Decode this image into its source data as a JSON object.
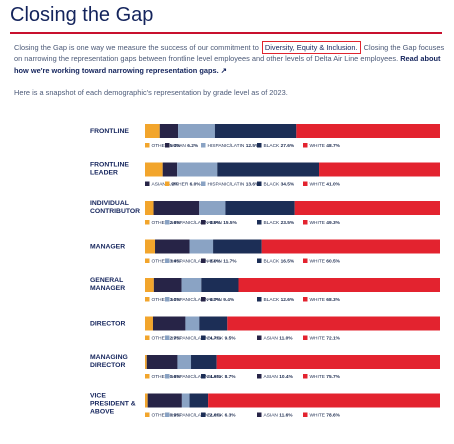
{
  "page": {
    "title": "Closing the Gap",
    "intro_before": "Closing the Gap is one way we measure the success of our commitment to",
    "intro_highlight": "Diversity, Equity & Inclusion.",
    "intro_after": " Closing the Gap focuses on narrowing the representation gaps between frontline level employees and other levels of Delta Air Line employees.",
    "intro_link": "Read about how we're working toward narrowing representation gaps. ↗",
    "snapshot_text": "Here is a snapshot of each demographic's representation by grade level as of 2023."
  },
  "colors": {
    "OTHER": "#f2a52c",
    "ASIAN": "#272447",
    "HISPANIC/LATIN": "#8aa3c4",
    "BLACK": "#1c2e56",
    "WHITE": "#e3232f"
  },
  "chart_data": {
    "type": "bar",
    "orientation": "horizontal",
    "stacked": true,
    "xlim": [
      0,
      100
    ],
    "series_keys": [
      "OTHER",
      "ASIAN",
      "HISPANIC/LATIN",
      "BLACK",
      "WHITE"
    ],
    "categories": [
      {
        "label": "FRONTLINE",
        "values": {
          "OTHER": 5.0,
          "ASIAN": 6.2,
          "HISPANIC/LATIN": 12.5,
          "BLACK": 27.6,
          "WHITE": 48.7
        },
        "legend_order": [
          "OTHER",
          "ASIAN",
          "HISPANIC/LATIN",
          "BLACK",
          "WHITE"
        ],
        "legend_text": {
          "OTHER": "5.0%",
          "ASIAN": "6.2%",
          "HISPANIC/LATIN": "12.5%",
          "BLACK": "27.6%",
          "WHITE": "48.7%"
        }
      },
      {
        "label": "FRONTLINE LEADER",
        "values": {
          "OTHER": 6.0,
          "ASIAN": 4.9,
          "HISPANIC/LATIN": 13.6,
          "BLACK": 34.5,
          "WHITE": 41.0
        },
        "legend_order": [
          "ASIAN",
          "OTHER",
          "HISPANIC/LATIN",
          "BLACK",
          "WHITE"
        ],
        "legend_text": {
          "OTHER": "6.0%",
          "ASIAN": "4.9%",
          "HISPANIC/LATIN": "13.6%",
          "BLACK": "34.5%",
          "WHITE": "41.0%"
        }
      },
      {
        "label": "INDIVIDUAL CONTRIBUTOR",
        "values": {
          "OTHER": 2.9,
          "ASIAN": 15.5,
          "HISPANIC/LATIN": 8.9,
          "BLACK": 23.5,
          "WHITE": 49.3
        },
        "legend_order": [
          "OTHER",
          "HISPANIC/LATIN",
          "ASIAN",
          "BLACK",
          "WHITE"
        ],
        "legend_text": {
          "OTHER": "2.9%",
          "ASIAN": "15.5%",
          "HISPANIC/LATIN": "8.9%",
          "BLACK": "23.5%",
          "WHITE": "49.3%"
        }
      },
      {
        "label": "MANAGER",
        "values": {
          "OTHER": 3.4,
          "ASIAN": 11.7,
          "HISPANIC/LATIN": 8.0,
          "BLACK": 16.5,
          "WHITE": 60.5
        },
        "legend_order": [
          "OTHER",
          "HISPANIC/LATIN",
          "ASIAN",
          "BLACK",
          "WHITE"
        ],
        "legend_text": {
          "OTHER": "3.4%",
          "ASIAN": "11.7%",
          "HISPANIC/LATIN": "8.0%",
          "BLACK": "16.5%",
          "WHITE": "60.5%"
        }
      },
      {
        "label": "GENERAL MANAGER",
        "values": {
          "OTHER": 3.0,
          "ASIAN": 9.4,
          "HISPANIC/LATIN": 6.7,
          "BLACK": 12.6,
          "WHITE": 68.3
        },
        "legend_order": [
          "OTHER",
          "HISPANIC/LATIN",
          "ASIAN",
          "BLACK",
          "WHITE"
        ],
        "legend_text": {
          "OTHER": "3.0%",
          "ASIAN": "9.4%",
          "HISPANIC/LATIN": "6.7%",
          "BLACK": "12.6%",
          "WHITE": "68.3%"
        }
      },
      {
        "label": "DIRECTOR",
        "values": {
          "OTHER": 2.7,
          "ASIAN": 11.0,
          "HISPANIC/LATIN": 4.7,
          "BLACK": 9.5,
          "WHITE": 72.1
        },
        "legend_order": [
          "OTHER",
          "HISPANIC/LATIN",
          "BLACK",
          "ASIAN",
          "WHITE"
        ],
        "legend_text": {
          "OTHER": "2.7%",
          "ASIAN": "11.0%",
          "HISPANIC/LATIN": "4.7%",
          "BLACK": "9.5%",
          "WHITE": "72.1%"
        }
      },
      {
        "label": "MANAGING DIRECTOR",
        "values": {
          "OTHER": 0.6,
          "ASIAN": 10.4,
          "HISPANIC/LATIN": 4.6,
          "BLACK": 8.7,
          "WHITE": 75.7
        },
        "legend_order": [
          "OTHER",
          "HISPANIC/LATIN",
          "BLACK",
          "ASIAN",
          "WHITE"
        ],
        "legend_text": {
          "OTHER": "0.6%",
          "ASIAN": "10.4%",
          "HISPANIC/LATIN": "4.6%",
          "BLACK": "8.7%",
          "WHITE": "75.7%"
        }
      },
      {
        "label": "VICE PRESIDENT & ABOVE",
        "values": {
          "OTHER": 0.9,
          "ASIAN": 11.6,
          "HISPANIC/LATIN": 2.6,
          "BLACK": 6.3,
          "WHITE": 78.6
        },
        "legend_order": [
          "OTHER",
          "HISPANIC/LATIN",
          "BLACK",
          "ASIAN",
          "WHITE"
        ],
        "legend_text": {
          "OTHER": "0.9%",
          "ASIAN": "11.6%",
          "HISPANIC/LATIN": "2.6%",
          "BLACK": "6.3%",
          "WHITE": "78.6%"
        }
      }
    ]
  }
}
